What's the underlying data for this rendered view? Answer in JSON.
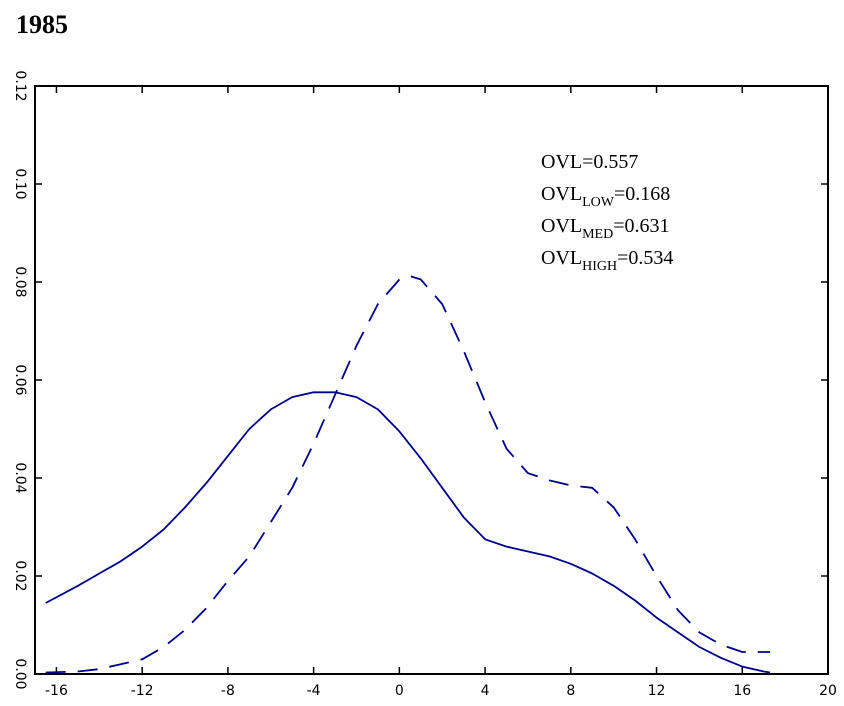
{
  "chart_data": {
    "type": "line",
    "title": "1985",
    "xlabel": "",
    "ylabel": "",
    "xlim": [
      -17,
      20
    ],
    "ylim": [
      0,
      0.12
    ],
    "x_ticks": [
      -16,
      -12,
      -8,
      -4,
      0,
      4,
      8,
      12,
      16,
      20
    ],
    "y_ticks": [
      0.0,
      0.02,
      0.04,
      0.06,
      0.08,
      0.1,
      0.12
    ],
    "x_tick_labels": [
      "-16",
      "-12",
      "-8",
      "-4",
      "0",
      "4",
      "8",
      "12",
      "16",
      "20"
    ],
    "y_tick_labels": [
      "0.00",
      "0.02",
      "0.04",
      "0.06",
      "0.08",
      "0.10",
      "0.12"
    ],
    "grid": false,
    "line_color": "#00008B",
    "series": [
      {
        "style": "solid",
        "x": [
          -16.5,
          -15,
          -14,
          -13,
          -12,
          -11,
          -10,
          -9,
          -8,
          -7,
          -6,
          -5,
          -4,
          -3,
          -2,
          -1,
          0,
          1,
          2,
          3,
          4,
          5,
          6,
          7,
          8,
          9,
          10,
          11,
          12,
          13,
          14,
          15,
          16,
          17,
          17.3
        ],
        "y": [
          0.0145,
          0.018,
          0.0205,
          0.023,
          0.026,
          0.0295,
          0.034,
          0.039,
          0.0445,
          0.05,
          0.054,
          0.0565,
          0.0575,
          0.0575,
          0.0565,
          0.054,
          0.0495,
          0.044,
          0.038,
          0.032,
          0.0275,
          0.026,
          0.025,
          0.024,
          0.0225,
          0.0205,
          0.018,
          0.015,
          0.0115,
          0.0085,
          0.0055,
          0.0033,
          0.0015,
          0.0005,
          0.0003
        ]
      },
      {
        "style": "dashed",
        "x": [
          -16.5,
          -15,
          -14,
          -13,
          -12,
          -11,
          -10,
          -9,
          -8,
          -7,
          -6,
          -5,
          -4,
          -3,
          -2,
          -1,
          0,
          0.5,
          1,
          2,
          3,
          4,
          5,
          6,
          7,
          8,
          9,
          10,
          11,
          12,
          13,
          14,
          15,
          16,
          17,
          17.3
        ],
        "y": [
          0.0003,
          0.0005,
          0.001,
          0.002,
          0.003,
          0.0055,
          0.009,
          0.0135,
          0.019,
          0.024,
          0.031,
          0.038,
          0.047,
          0.057,
          0.067,
          0.0755,
          0.0805,
          0.0812,
          0.0805,
          0.0755,
          0.066,
          0.0555,
          0.046,
          0.041,
          0.0395,
          0.0385,
          0.038,
          0.034,
          0.0275,
          0.02,
          0.013,
          0.0085,
          0.006,
          0.0045,
          0.0045,
          0.0045
        ]
      }
    ],
    "annotations": [
      {
        "prefix": "OVL",
        "sub": "",
        "value": "=0.557"
      },
      {
        "prefix": "OVL",
        "sub": "LOW",
        "value": "=0.168"
      },
      {
        "prefix": "OVL",
        "sub": "MED",
        "value": "=0.631"
      },
      {
        "prefix": "OVL",
        "sub": "HIGH",
        "value": "=0.534"
      }
    ]
  }
}
